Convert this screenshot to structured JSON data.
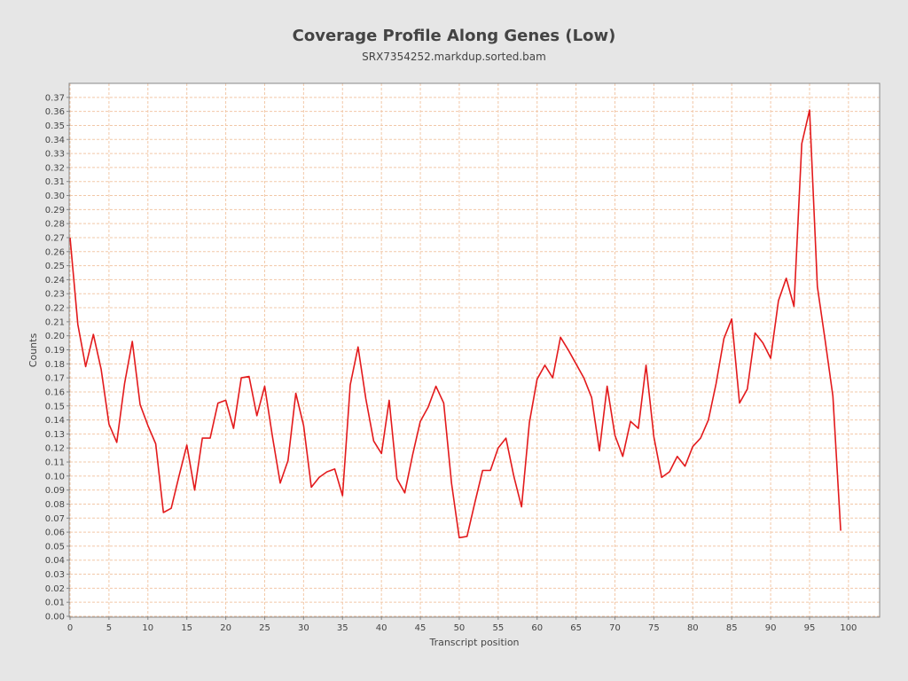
{
  "chart_data": {
    "type": "line",
    "title": "Coverage Profile Along Genes (Low)",
    "subtitle": "SRX7354252.markdup.sorted.bam",
    "xlabel": "Transcript position",
    "ylabel": "Counts",
    "xlim": [
      0,
      104
    ],
    "ylim": [
      0,
      0.38
    ],
    "grid": true,
    "x_ticks": [
      0,
      5,
      10,
      15,
      20,
      25,
      30,
      35,
      40,
      45,
      50,
      55,
      60,
      65,
      70,
      75,
      80,
      85,
      90,
      95,
      100
    ],
    "y_ticks": [
      0.0,
      0.01,
      0.02,
      0.03,
      0.04,
      0.05,
      0.06,
      0.07,
      0.08,
      0.09,
      0.1,
      0.11,
      0.12,
      0.13,
      0.14,
      0.15,
      0.16,
      0.17,
      0.18,
      0.19,
      0.2,
      0.21,
      0.22,
      0.23,
      0.24,
      0.25,
      0.26,
      0.27,
      0.28,
      0.29,
      0.3,
      0.31,
      0.32,
      0.33,
      0.34,
      0.35,
      0.36,
      0.37
    ],
    "series": [
      {
        "color": "#e31a1c",
        "x": [
          0,
          1,
          2,
          3,
          4,
          5,
          6,
          7,
          8,
          9,
          10,
          11,
          12,
          13,
          14,
          15,
          16,
          17,
          18,
          19,
          20,
          21,
          22,
          23,
          24,
          25,
          26,
          27,
          28,
          29,
          30,
          31,
          32,
          33,
          34,
          35,
          36,
          37,
          38,
          39,
          40,
          41,
          42,
          43,
          44,
          45,
          46,
          47,
          48,
          49,
          50,
          51,
          52,
          53,
          54,
          55,
          56,
          57,
          58,
          59,
          60,
          61,
          62,
          63,
          64,
          65,
          66,
          67,
          68,
          69,
          70,
          71,
          72,
          73,
          74,
          75,
          76,
          77,
          78,
          79,
          80,
          81,
          82,
          83,
          84,
          85,
          86,
          87,
          88,
          89,
          90,
          91,
          92,
          93,
          94,
          95,
          96,
          97,
          98,
          99
        ],
        "values": [
          0.27,
          0.208,
          0.178,
          0.201,
          0.176,
          0.137,
          0.124,
          0.166,
          0.196,
          0.151,
          0.136,
          0.123,
          0.074,
          0.077,
          0.1,
          0.122,
          0.09,
          0.127,
          0.127,
          0.152,
          0.154,
          0.134,
          0.17,
          0.171,
          0.143,
          0.164,
          0.128,
          0.095,
          0.111,
          0.159,
          0.136,
          0.092,
          0.099,
          0.103,
          0.105,
          0.086,
          0.165,
          0.192,
          0.155,
          0.125,
          0.116,
          0.154,
          0.098,
          0.088,
          0.115,
          0.139,
          0.149,
          0.164,
          0.152,
          0.095,
          0.056,
          0.057,
          0.081,
          0.104,
          0.104,
          0.12,
          0.127,
          0.1,
          0.078,
          0.138,
          0.169,
          0.179,
          0.17,
          0.199,
          0.19,
          0.18,
          0.17,
          0.156,
          0.118,
          0.164,
          0.129,
          0.114,
          0.139,
          0.134,
          0.179,
          0.128,
          0.099,
          0.103,
          0.114,
          0.107,
          0.121,
          0.127,
          0.14,
          0.166,
          0.198,
          0.212,
          0.152,
          0.162,
          0.202,
          0.195,
          0.184,
          0.225,
          0.241,
          0.221,
          0.337,
          0.361,
          0.235,
          0.197,
          0.157,
          0.061
        ]
      }
    ]
  }
}
